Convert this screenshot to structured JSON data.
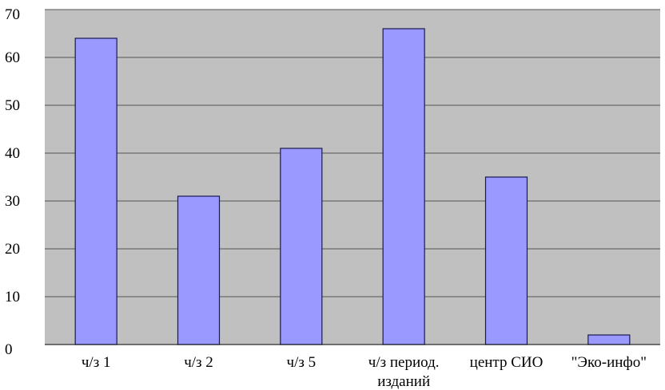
{
  "chart_data": {
    "type": "bar",
    "categories": [
      [
        "ч/з 1"
      ],
      [
        "ч/з 2"
      ],
      [
        "ч/з 5"
      ],
      [
        "ч/з период.",
        "изданий"
      ],
      [
        "центр СИО"
      ],
      [
        "\"Эко-инфо\""
      ]
    ],
    "values": [
      64,
      31,
      41,
      66,
      35,
      2
    ],
    "ylim": [
      0,
      70
    ],
    "yticks": [
      0,
      10,
      20,
      30,
      40,
      50,
      60,
      70
    ],
    "grid": true,
    "legend": "none",
    "colors": {
      "bar_fill": "#9999ff",
      "plot_background": "#c0c0c0",
      "gridline": "#555555"
    }
  }
}
